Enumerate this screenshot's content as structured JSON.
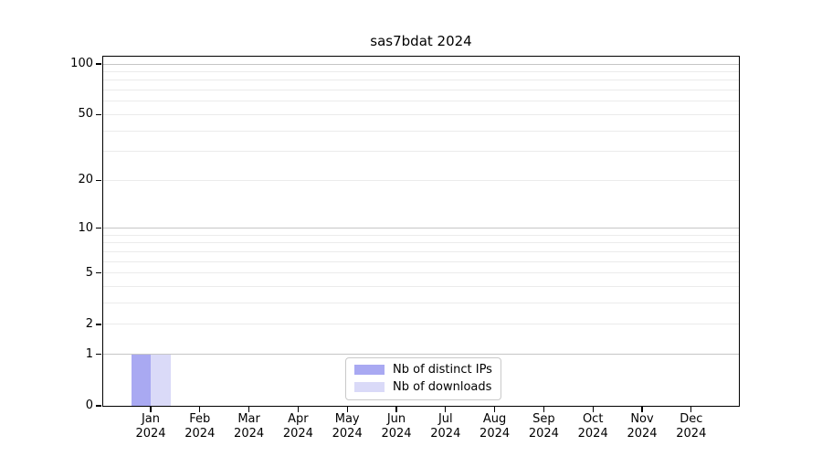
{
  "chart_data": {
    "type": "bar",
    "title": "sas7bdat 2024",
    "categories": [
      "Jan 2024",
      "Feb 2024",
      "Mar 2024",
      "Apr 2024",
      "May 2024",
      "Jun 2024",
      "Jul 2024",
      "Aug 2024",
      "Sep 2024",
      "Oct 2024",
      "Nov 2024",
      "Dec 2024"
    ],
    "month_labels": [
      "Jan",
      "Feb",
      "Mar",
      "Apr",
      "May",
      "Jun",
      "Jul",
      "Aug",
      "Sep",
      "Oct",
      "Nov",
      "Dec"
    ],
    "year_label": "2024",
    "series": [
      {
        "name": "Nb of distinct IPs",
        "color": "#a9a9f2",
        "values": [
          1,
          0,
          0,
          0,
          0,
          0,
          0,
          0,
          0,
          0,
          0,
          0
        ]
      },
      {
        "name": "Nb of downloads",
        "color": "#dadaf8",
        "values": [
          1,
          0,
          0,
          0,
          0,
          0,
          0,
          0,
          0,
          0,
          0,
          0
        ]
      }
    ],
    "xlabel": "",
    "ylabel": "",
    "y_scale": "log10(1+x)",
    "y_tick_values": [
      0,
      1,
      2,
      5,
      10,
      20,
      50,
      100
    ],
    "y_major_gridlines": [
      1,
      10,
      100
    ],
    "y_minor_gridlines": [
      2,
      3,
      4,
      5,
      6,
      7,
      8,
      9,
      20,
      30,
      40,
      50,
      60,
      70,
      80,
      90
    ],
    "ylim": [
      0,
      112
    ],
    "grid": true,
    "legend_position": "lower center"
  },
  "colors": {
    "background": "#ffffff",
    "axis": "#000000",
    "text": "#000000",
    "major_grid": "#c6c6c6",
    "minor_grid": "#ebebeb",
    "legend_border": "#c9c9c9"
  }
}
